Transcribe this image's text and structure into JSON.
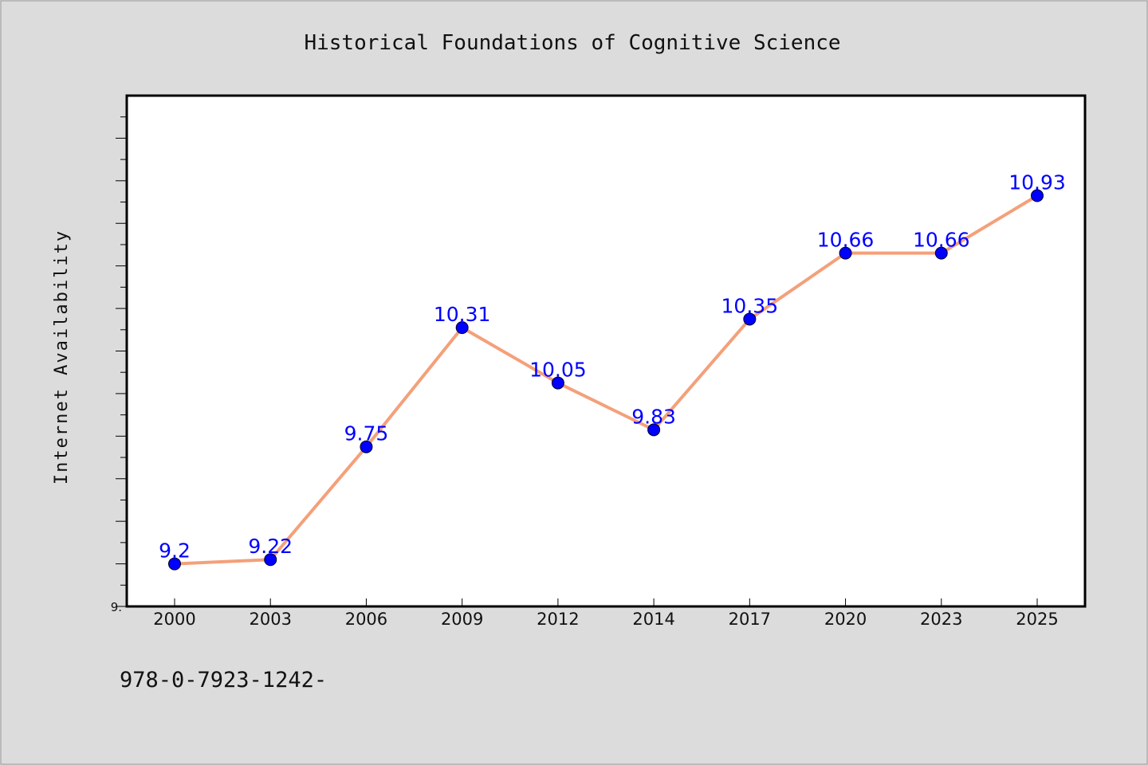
{
  "chart_data": {
    "type": "line",
    "title": "Historical Foundations of Cognitive Science",
    "xlabel": "",
    "ylabel": "Internet Availability",
    "categories": [
      "2000",
      "2003",
      "2006",
      "2009",
      "2012",
      "2014",
      "2017",
      "2020",
      "2023",
      "2025"
    ],
    "series": [
      {
        "values": [
          9.2,
          9.22,
          9.75,
          10.31,
          10.05,
          9.83,
          10.35,
          10.66,
          10.66,
          10.93
        ]
      }
    ],
    "data_labels": [
      "9.2",
      "9.22",
      "9.75",
      "10.31",
      "10.05",
      "9.83",
      "10.35",
      "10.66",
      "10.66",
      "10.93"
    ],
    "ylim": [
      9.0,
      11.4
    ],
    "ytick_labels": [
      {
        "value": 9.0,
        "label": "9."
      }
    ],
    "grid": false,
    "legend": "none",
    "colors": {
      "line": "#f4a07a",
      "marker": "#0000ff",
      "data_label": "#0000ff",
      "plot_background": "#ffffff",
      "figure_background": "#dcdcdc"
    }
  },
  "footnote": "978-0-7923-1242-"
}
